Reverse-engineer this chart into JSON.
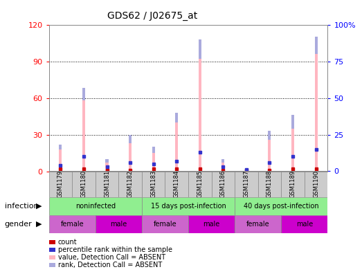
{
  "title": "GDS62 / J02675_at",
  "samples": [
    "GSM1179",
    "GSM1180",
    "GSM1181",
    "GSM1182",
    "GSM1183",
    "GSM1184",
    "GSM1185",
    "GSM1186",
    "GSM1187",
    "GSM1188",
    "GSM1189",
    "GSM1190"
  ],
  "pink_bar_values": [
    22,
    68,
    10,
    30,
    20,
    48,
    108,
    10,
    2,
    33,
    46,
    110
  ],
  "blue_segment_bottom": [
    18,
    58,
    7,
    23,
    15,
    40,
    92,
    7,
    1,
    26,
    35,
    96
  ],
  "blue_segment_top": [
    22,
    68,
    10,
    30,
    20,
    48,
    108,
    10,
    2,
    33,
    46,
    110
  ],
  "red_marker_values": [
    2,
    2,
    1,
    1,
    2,
    2,
    2,
    1,
    1,
    1,
    2,
    2
  ],
  "blue_marker_values": [
    4,
    10,
    3,
    6,
    5,
    7,
    13,
    3,
    1,
    6,
    10,
    15
  ],
  "ylim_left": [
    0,
    120
  ],
  "ylim_right": [
    0,
    100
  ],
  "yticks_left": [
    0,
    30,
    60,
    90,
    120
  ],
  "ytick_labels_left": [
    "0",
    "30",
    "60",
    "90",
    "120"
  ],
  "yticks_right": [
    0,
    25,
    50,
    75,
    100
  ],
  "ytick_labels_right": [
    "0",
    "25",
    "50",
    "75",
    "100%"
  ],
  "pink_color": "#FFB6C1",
  "blue_seg_color": "#AAAADD",
  "red_color": "#CC0000",
  "blue_marker_color": "#3333CC",
  "bar_width": 0.12,
  "infection_groups": [
    {
      "label": "noninfected",
      "start": 0,
      "end": 4
    },
    {
      "label": "15 days post-infection",
      "start": 4,
      "end": 8
    },
    {
      "label": "40 days post-infection",
      "start": 8,
      "end": 12
    }
  ],
  "gender_groups": [
    {
      "label": "female",
      "start": 0,
      "end": 2
    },
    {
      "label": "male",
      "start": 2,
      "end": 4
    },
    {
      "label": "female",
      "start": 4,
      "end": 6
    },
    {
      "label": "male",
      "start": 6,
      "end": 8
    },
    {
      "label": "female",
      "start": 8,
      "end": 10
    },
    {
      "label": "male",
      "start": 10,
      "end": 12
    }
  ],
  "infection_color": "#90EE90",
  "female_color": "#CC66CC",
  "male_color": "#CC00CC",
  "border_color": "#888888",
  "sample_box_color": "#CCCCCC",
  "legend_items": [
    {
      "label": "count",
      "color": "#CC0000"
    },
    {
      "label": "percentile rank within the sample",
      "color": "#3333CC"
    },
    {
      "label": "value, Detection Call = ABSENT",
      "color": "#FFB6C1"
    },
    {
      "label": "rank, Detection Call = ABSENT",
      "color": "#AAAADD"
    }
  ]
}
